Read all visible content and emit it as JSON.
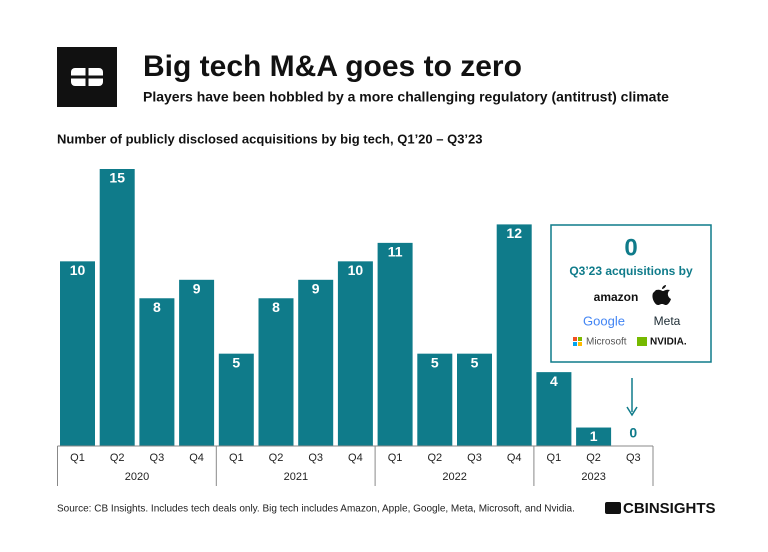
{
  "chart_data": {
    "type": "bar",
    "title": "Big tech M&A goes to zero",
    "subtitle": "Players have been hobbled by a more challenging regulatory (antitrust) climate",
    "axis_label": "Number of publicly disclosed acquisitions by big tech, Q1’20 – Q3’23",
    "groups": [
      {
        "name": "2020",
        "categories": [
          "Q1",
          "Q2",
          "Q3",
          "Q4"
        ]
      },
      {
        "name": "2021",
        "categories": [
          "Q1",
          "Q2",
          "Q3",
          "Q4"
        ]
      },
      {
        "name": "2022",
        "categories": [
          "Q1",
          "Q2",
          "Q3",
          "Q4"
        ]
      },
      {
        "name": "2023",
        "categories": [
          "Q1",
          "Q2",
          "Q3"
        ]
      }
    ],
    "values": [
      10,
      15,
      8,
      9,
      5,
      8,
      9,
      10,
      11,
      5,
      5,
      12,
      4,
      1,
      0
    ],
    "color": "#0f7b8a",
    "annotation": {
      "headline": "0",
      "text": "Q3’23 acquisitions by",
      "companies": [
        "amazon",
        "Google",
        "Meta",
        "Microsoft",
        "NVIDIA."
      ]
    },
    "source": "Source: CB Insights. Includes tech deals only. Big tech includes Amazon, Apple, Google, Meta, Microsoft, and Nvidia.",
    "brand": "CBINSIGHTS"
  }
}
